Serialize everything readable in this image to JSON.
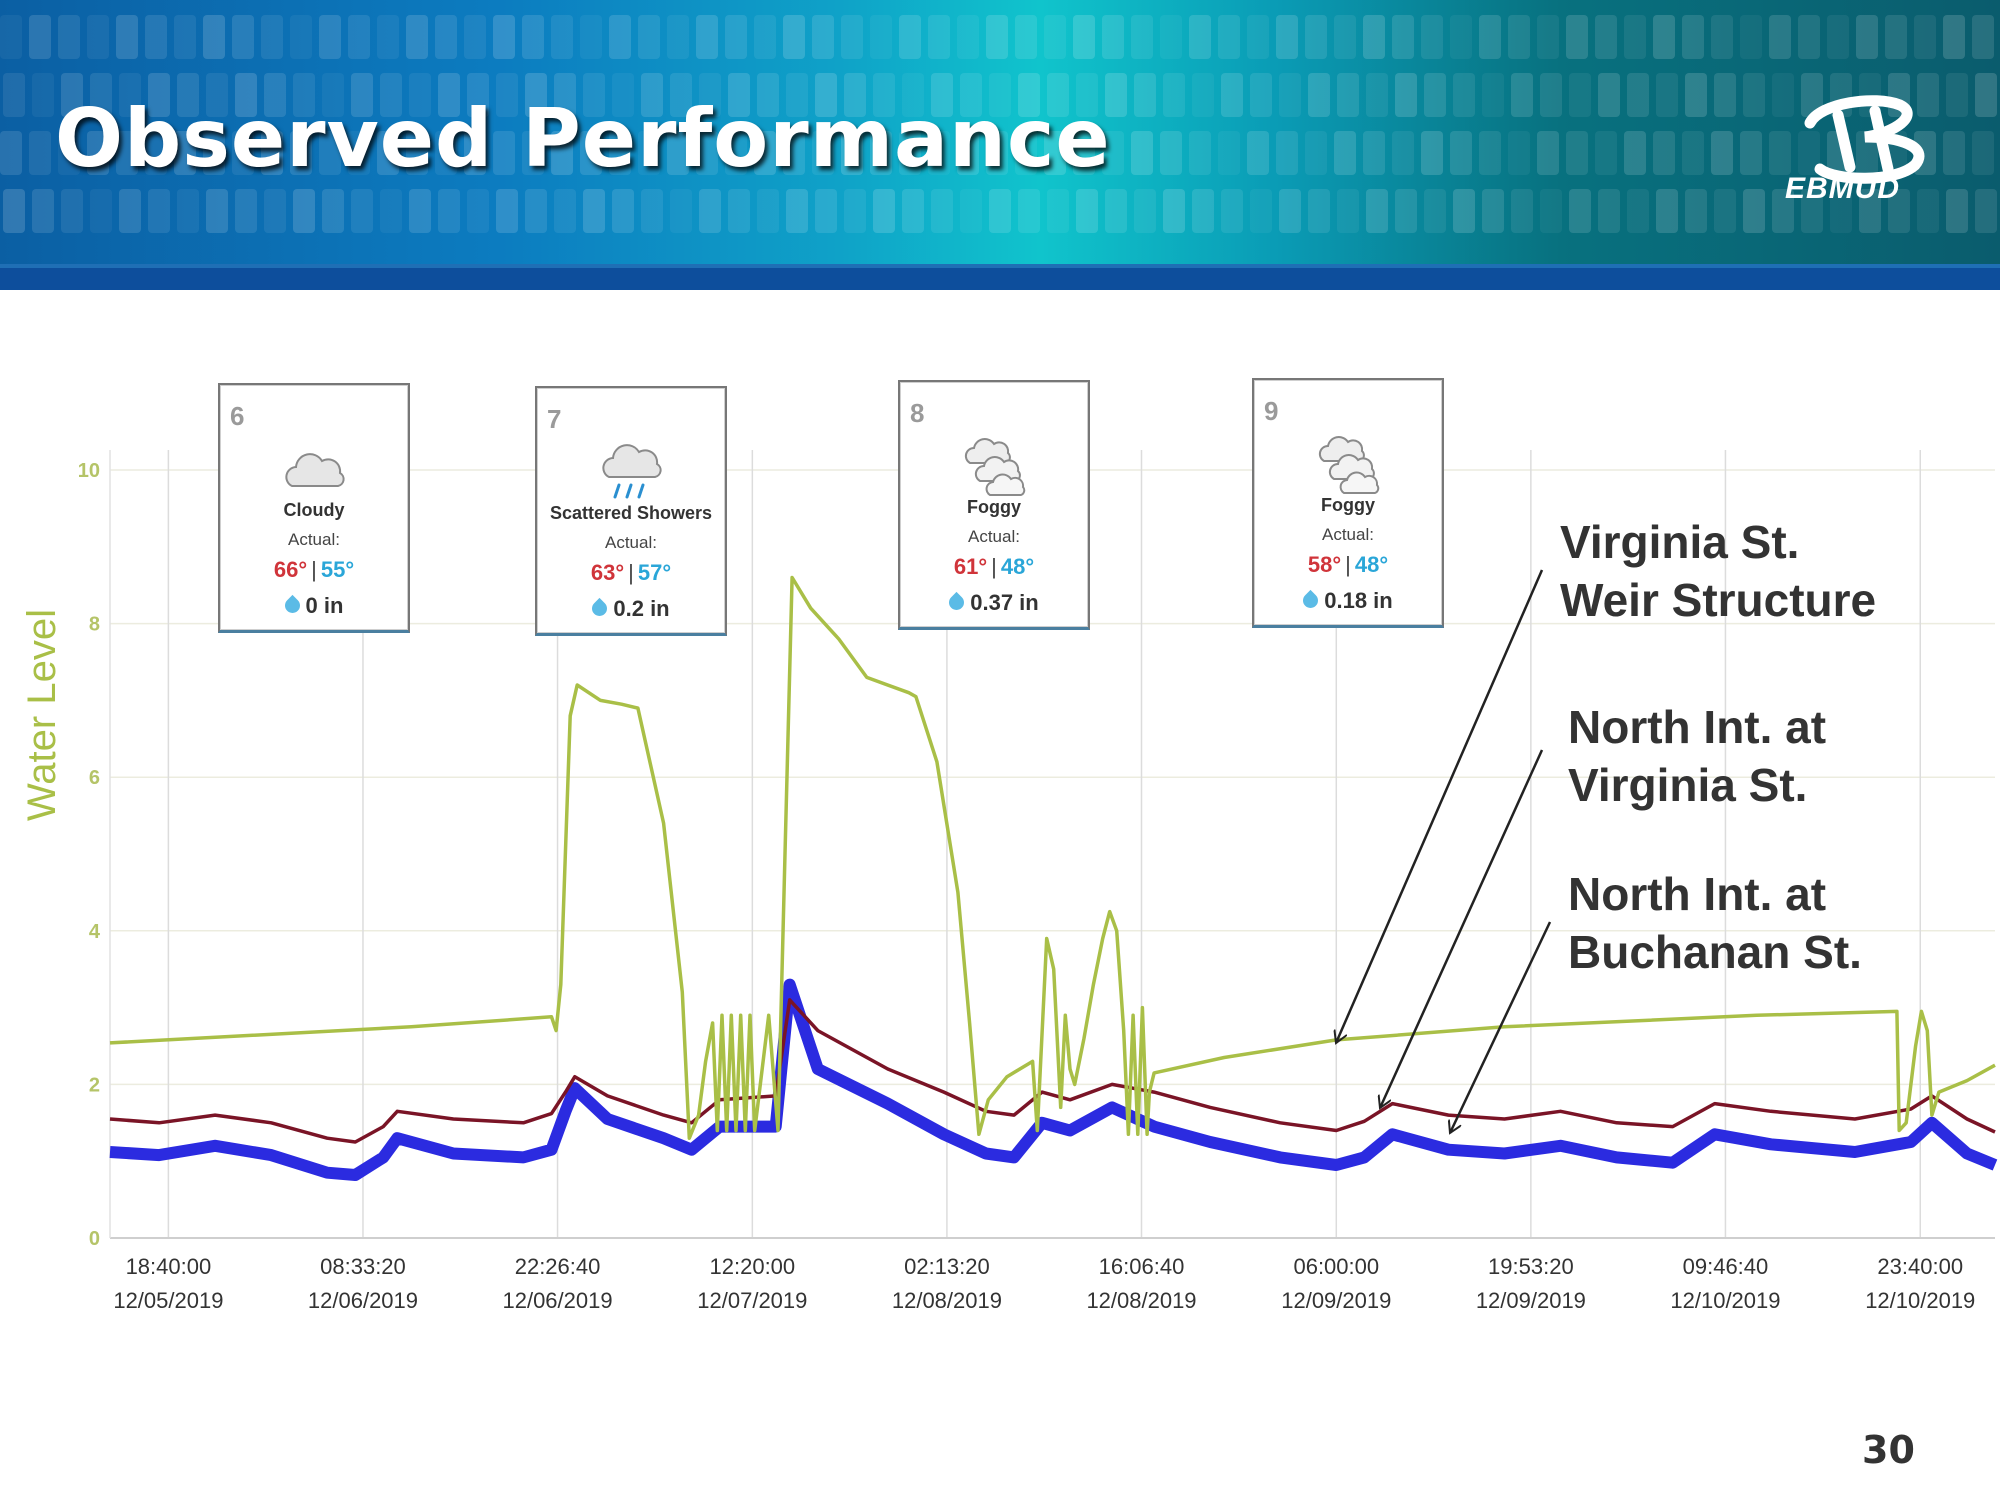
{
  "slide": {
    "title": "Observed Performance",
    "logo_text": "EBMUD",
    "page_number": "30"
  },
  "weather_cards": [
    {
      "day": "6",
      "condition": "Cloudy",
      "actual_label": "Actual:",
      "high": "66°",
      "low": "55°",
      "precip": "0 in",
      "icon": "cloud-icon"
    },
    {
      "day": "7",
      "condition": "Scattered Showers",
      "actual_label": "Actual:",
      "high": "63°",
      "low": "57°",
      "precip": "0.2 in",
      "icon": "rain-cloud-icon"
    },
    {
      "day": "8",
      "condition": "Foggy",
      "actual_label": "Actual:",
      "high": "61°",
      "low": "48°",
      "precip": "0.37 in",
      "icon": "fog-cloud-icon"
    },
    {
      "day": "9",
      "condition": "Foggy",
      "actual_label": "Actual:",
      "high": "58°",
      "low": "48°",
      "precip": "0.18 in",
      "icon": "fog-cloud-icon"
    }
  ],
  "annotations": [
    {
      "line1": "Virginia St.",
      "line2": "Weir Structure"
    },
    {
      "line1": "North Int. at",
      "line2": "Virginia St."
    },
    {
      "line1": "North Int. at",
      "line2": "Buchanan St."
    }
  ],
  "chart_data": {
    "type": "line",
    "ylabel": "Water Level",
    "xlabel": "",
    "ylim": [
      0,
      10
    ],
    "yticks": [
      "0",
      "2",
      "4",
      "6",
      "8",
      "10"
    ],
    "grid": true,
    "x_range": [
      "12/05/2019 14:30",
      "12/11/2019 05:00"
    ],
    "xticks": [
      {
        "time": "18:40:00",
        "date": "12/05/2019"
      },
      {
        "time": "08:33:20",
        "date": "12/06/2019"
      },
      {
        "time": "22:26:40",
        "date": "12/06/2019"
      },
      {
        "time": "12:20:00",
        "date": "12/07/2019"
      },
      {
        "time": "02:13:20",
        "date": "12/08/2019"
      },
      {
        "time": "16:06:40",
        "date": "12/08/2019"
      },
      {
        "time": "06:00:00",
        "date": "12/09/2019"
      },
      {
        "time": "19:53:20",
        "date": "12/09/2019"
      },
      {
        "time": "09:46:40",
        "date": "12/10/2019"
      },
      {
        "time": "23:40:00",
        "date": "12/10/2019"
      }
    ],
    "series": [
      {
        "name": "Virginia St. Weir Structure",
        "color": "#a9bf47",
        "points": [
          [
            "12/05/2019 14:30",
            2.54
          ],
          [
            "12/06/2019 12:00",
            2.75
          ],
          [
            "12/06/2019 22:00",
            2.88
          ],
          [
            "12/06/2019 22:20",
            2.7
          ],
          [
            "12/06/2019 22:40",
            3.3
          ],
          [
            "12/06/2019 23:20",
            6.8
          ],
          [
            "12/06/2019 23:50",
            7.2
          ],
          [
            "12/07/2019 01:30",
            7.0
          ],
          [
            "12/07/2019 03:00",
            6.95
          ],
          [
            "12/07/2019 04:10",
            6.9
          ],
          [
            "12/07/2019 06:00",
            5.4
          ],
          [
            "12/07/2019 07:20",
            3.2
          ],
          [
            "12/07/2019 07:50",
            1.3
          ],
          [
            "12/07/2019 08:30",
            1.6
          ],
          [
            "12/07/2019 09:00",
            2.3
          ],
          [
            "12/07/2019 09:30",
            2.8
          ],
          [
            "12/07/2019 09:50",
            1.4
          ],
          [
            "12/07/2019 10:10",
            2.9
          ],
          [
            "12/07/2019 10:30",
            1.4
          ],
          [
            "12/07/2019 10:50",
            2.9
          ],
          [
            "12/07/2019 11:10",
            1.4
          ],
          [
            "12/07/2019 11:30",
            2.9
          ],
          [
            "12/07/2019 11:50",
            1.4
          ],
          [
            "12/07/2019 12:10",
            2.9
          ],
          [
            "12/07/2019 12:30",
            1.4
          ],
          [
            "12/07/2019 13:30",
            2.9
          ],
          [
            "12/07/2019 14:10",
            1.4
          ],
          [
            "12/07/2019 14:40",
            5.0
          ],
          [
            "12/07/2019 15:10",
            8.6
          ],
          [
            "12/07/2019 16:30",
            8.2
          ],
          [
            "12/07/2019 18:30",
            7.8
          ],
          [
            "12/07/2019 20:30",
            7.3
          ],
          [
            "12/07/2019 23:30",
            7.1
          ],
          [
            "12/08/2019 00:00",
            7.05
          ],
          [
            "12/08/2019 01:30",
            6.2
          ],
          [
            "12/08/2019 03:00",
            4.5
          ],
          [
            "12/08/2019 03:50",
            2.8
          ],
          [
            "12/08/2019 04:30",
            1.35
          ],
          [
            "12/08/2019 05:10",
            1.8
          ],
          [
            "12/08/2019 06:30",
            2.1
          ],
          [
            "12/08/2019 08:20",
            2.3
          ],
          [
            "12/08/2019 08:40",
            1.4
          ],
          [
            "12/08/2019 09:20",
            3.9
          ],
          [
            "12/08/2019 09:50",
            3.5
          ],
          [
            "12/08/2019 10:20",
            1.7
          ],
          [
            "12/08/2019 10:40",
            2.9
          ],
          [
            "12/08/2019 11:00",
            2.2
          ],
          [
            "12/08/2019 11:20",
            2.0
          ],
          [
            "12/08/2019 12:00",
            2.6
          ],
          [
            "12/08/2019 12:40",
            3.3
          ],
          [
            "12/08/2019 13:20",
            3.9
          ],
          [
            "12/08/2019 13:50",
            4.25
          ],
          [
            "12/08/2019 14:20",
            4.0
          ],
          [
            "12/08/2019 14:50",
            2.7
          ],
          [
            "12/08/2019 15:10",
            1.35
          ],
          [
            "12/08/2019 15:30",
            2.9
          ],
          [
            "12/08/2019 15:50",
            1.35
          ],
          [
            "12/08/2019 16:10",
            3.0
          ],
          [
            "12/08/2019 16:30",
            1.35
          ],
          [
            "12/08/2019 16:40",
            1.9
          ],
          [
            "12/08/2019 17:00",
            2.15
          ],
          [
            "12/08/2019 22:00",
            2.35
          ],
          [
            "12/09/2019 06:00",
            2.58
          ],
          [
            "12/09/2019 18:00",
            2.75
          ],
          [
            "12/10/2019 12:00",
            2.9
          ],
          [
            "12/10/2019 22:00",
            2.95
          ],
          [
            "12/10/2019 22:10",
            1.4
          ],
          [
            "12/10/2019 22:40",
            1.5
          ],
          [
            "12/10/2019 23:20",
            2.5
          ],
          [
            "12/10/2019 23:45",
            2.95
          ],
          [
            "12/11/2019 00:10",
            2.7
          ],
          [
            "12/11/2019 00:30",
            1.6
          ],
          [
            "12/11/2019 01:00",
            1.9
          ],
          [
            "12/11/2019 03:00",
            2.05
          ],
          [
            "12/11/2019 05:00",
            2.25
          ]
        ]
      },
      {
        "name": "North Int. at Virginia St.",
        "color": "#7a1426",
        "points": [
          [
            "12/05/2019 14:30",
            1.55
          ],
          [
            "12/05/2019 18:00",
            1.5
          ],
          [
            "12/05/2019 22:00",
            1.6
          ],
          [
            "12/06/2019 02:00",
            1.5
          ],
          [
            "12/06/2019 06:00",
            1.3
          ],
          [
            "12/06/2019 08:00",
            1.25
          ],
          [
            "12/06/2019 10:00",
            1.45
          ],
          [
            "12/06/2019 11:00",
            1.65
          ],
          [
            "12/06/2019 15:00",
            1.55
          ],
          [
            "12/06/2019 20:00",
            1.5
          ],
          [
            "12/06/2019 22:00",
            1.62
          ],
          [
            "12/06/2019 23:00",
            1.9
          ],
          [
            "12/06/2019 23:40",
            2.1
          ],
          [
            "12/07/2019 02:00",
            1.85
          ],
          [
            "12/07/2019 06:00",
            1.6
          ],
          [
            "12/07/2019 08:00",
            1.5
          ],
          [
            "12/07/2019 10:00",
            1.8
          ],
          [
            "12/07/2019 14:00",
            1.85
          ],
          [
            "12/07/2019 15:00",
            3.1
          ],
          [
            "12/07/2019 17:00",
            2.7
          ],
          [
            "12/07/2019 22:00",
            2.2
          ],
          [
            "12/08/2019 02:00",
            1.9
          ],
          [
            "12/08/2019 05:00",
            1.65
          ],
          [
            "12/08/2019 07:00",
            1.6
          ],
          [
            "12/08/2019 09:00",
            1.9
          ],
          [
            "12/08/2019 11:00",
            1.8
          ],
          [
            "12/08/2019 14:00",
            2.0
          ],
          [
            "12/08/2019 17:00",
            1.9
          ],
          [
            "12/08/2019 21:00",
            1.7
          ],
          [
            "12/09/2019 02:00",
            1.5
          ],
          [
            "12/09/2019 06:00",
            1.4
          ],
          [
            "12/09/2019 08:00",
            1.52
          ],
          [
            "12/09/2019 10:00",
            1.75
          ],
          [
            "12/09/2019 14:00",
            1.6
          ],
          [
            "12/09/2019 18:00",
            1.55
          ],
          [
            "12/09/2019 22:00",
            1.65
          ],
          [
            "12/10/2019 02:00",
            1.5
          ],
          [
            "12/10/2019 06:00",
            1.45
          ],
          [
            "12/10/2019 09:00",
            1.75
          ],
          [
            "12/10/2019 13:00",
            1.65
          ],
          [
            "12/10/2019 19:00",
            1.55
          ],
          [
            "12/10/2019 23:00",
            1.68
          ],
          [
            "12/11/2019 00:30",
            1.85
          ],
          [
            "12/11/2019 03:00",
            1.55
          ],
          [
            "12/11/2019 05:00",
            1.38
          ]
        ]
      },
      {
        "name": "North Int. at Buchanan St.",
        "color": "#2b2be0",
        "points": [
          [
            "12/05/2019 14:30",
            1.12
          ],
          [
            "12/05/2019 18:00",
            1.08
          ],
          [
            "12/05/2019 22:00",
            1.2
          ],
          [
            "12/06/2019 02:00",
            1.08
          ],
          [
            "12/06/2019 06:00",
            0.85
          ],
          [
            "12/06/2019 08:00",
            0.82
          ],
          [
            "12/06/2019 10:00",
            1.05
          ],
          [
            "12/06/2019 11:00",
            1.3
          ],
          [
            "12/06/2019 15:00",
            1.1
          ],
          [
            "12/06/2019 20:00",
            1.05
          ],
          [
            "12/06/2019 22:00",
            1.15
          ],
          [
            "12/06/2019 23:00",
            1.65
          ],
          [
            "12/06/2019 23:40",
            1.95
          ],
          [
            "12/07/2019 02:00",
            1.55
          ],
          [
            "12/07/2019 06:00",
            1.3
          ],
          [
            "12/07/2019 08:00",
            1.15
          ],
          [
            "12/07/2019 10:00",
            1.45
          ],
          [
            "12/07/2019 14:00",
            1.45
          ],
          [
            "12/07/2019 15:00",
            3.3
          ],
          [
            "12/07/2019 17:00",
            2.2
          ],
          [
            "12/07/2019 22:00",
            1.75
          ],
          [
            "12/08/2019 02:00",
            1.35
          ],
          [
            "12/08/2019 05:00",
            1.1
          ],
          [
            "12/08/2019 07:00",
            1.05
          ],
          [
            "12/08/2019 09:00",
            1.5
          ],
          [
            "12/08/2019 11:00",
            1.4
          ],
          [
            "12/08/2019 14:00",
            1.7
          ],
          [
            "12/08/2019 17:00",
            1.45
          ],
          [
            "12/08/2019 21:00",
            1.25
          ],
          [
            "12/09/2019 02:00",
            1.05
          ],
          [
            "12/09/2019 06:00",
            0.95
          ],
          [
            "12/09/2019 08:00",
            1.05
          ],
          [
            "12/09/2019 10:00",
            1.35
          ],
          [
            "12/09/2019 14:00",
            1.15
          ],
          [
            "12/09/2019 18:00",
            1.1
          ],
          [
            "12/09/2019 22:00",
            1.2
          ],
          [
            "12/10/2019 02:00",
            1.05
          ],
          [
            "12/10/2019 06:00",
            0.98
          ],
          [
            "12/10/2019 09:00",
            1.35
          ],
          [
            "12/10/2019 13:00",
            1.22
          ],
          [
            "12/10/2019 19:00",
            1.12
          ],
          [
            "12/10/2019 23:00",
            1.25
          ],
          [
            "12/11/2019 00:30",
            1.5
          ],
          [
            "12/11/2019 03:00",
            1.1
          ],
          [
            "12/11/2019 05:00",
            0.95
          ]
        ]
      }
    ]
  }
}
